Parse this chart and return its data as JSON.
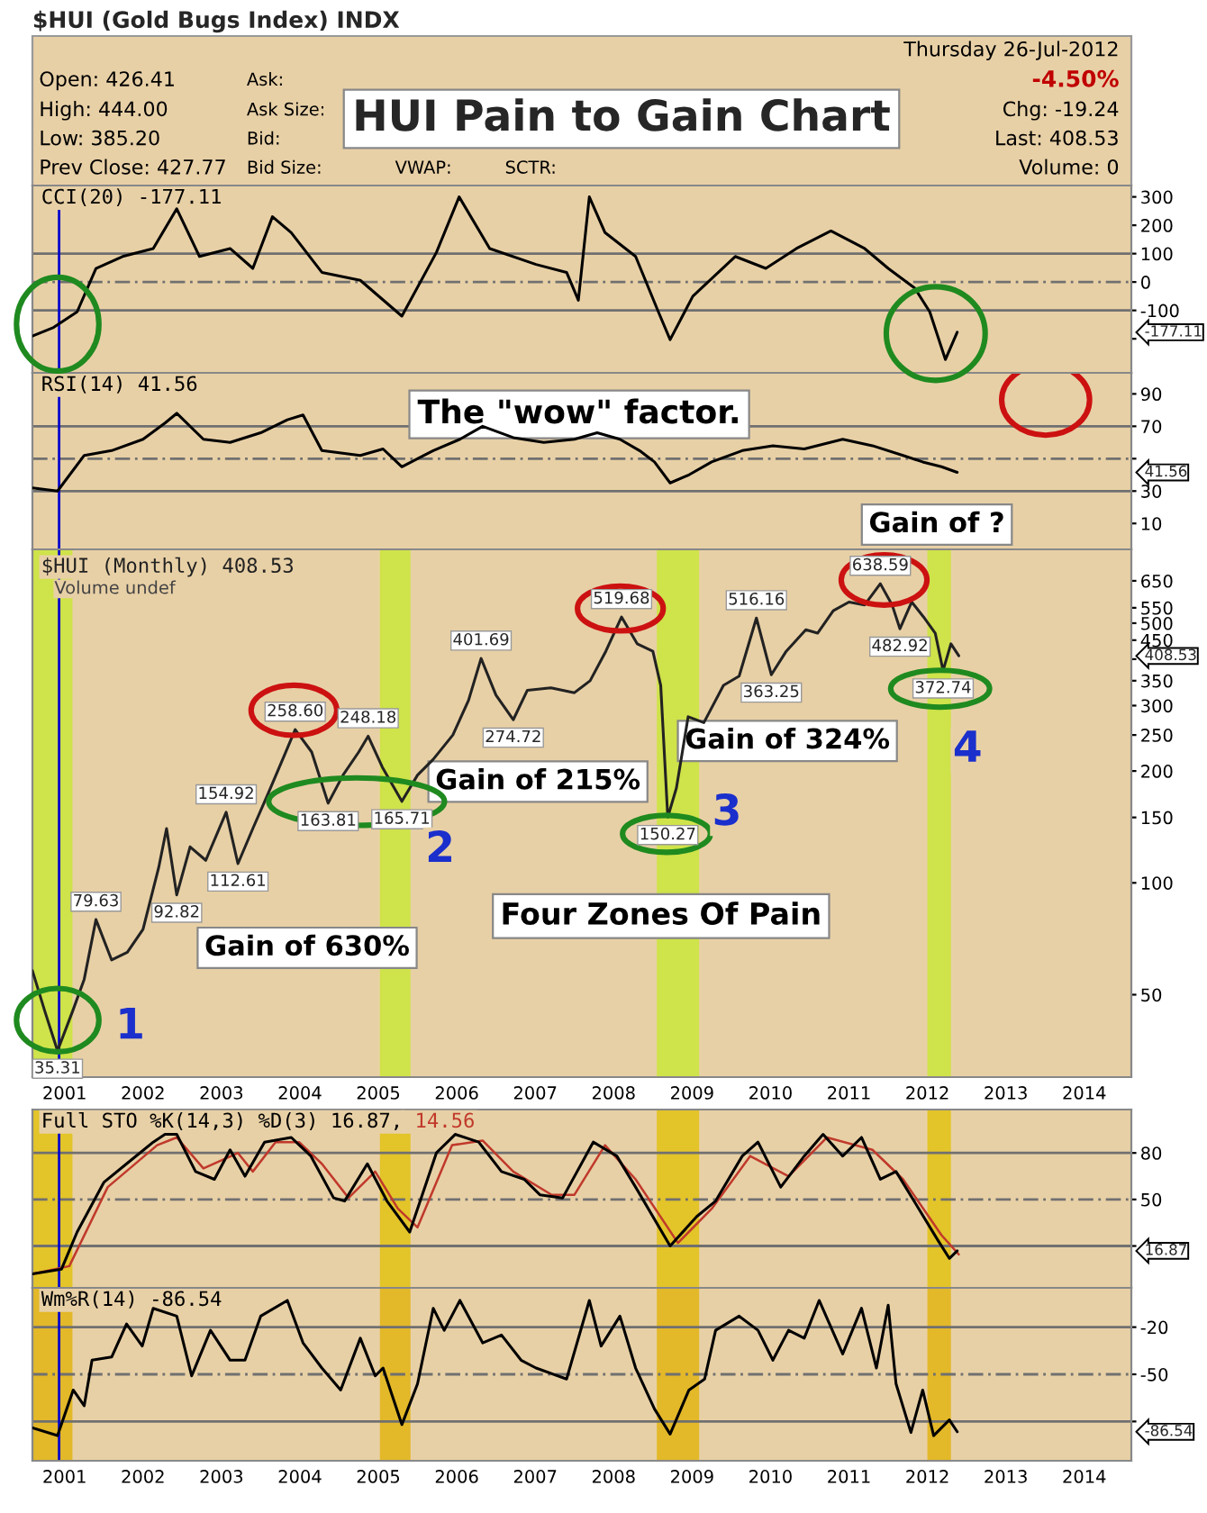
{
  "chart_data": [
    {
      "type": "line",
      "title": "HUI Pain to Gain Chart",
      "subtitle": "$HUI (Gold Bugs Index) INDX",
      "series": [
        {
          "name": "CCI(20) -177.11",
          "color": "#000000",
          "x": [
            2000.59,
            2000.86,
            2001.16,
            2001.4,
            2001.74,
            2002.13,
            2002.43,
            2002.72,
            2003.11,
            2003.4,
            2003.65,
            2003.89,
            2004.28,
            2004.77,
            2005.3,
            2005.74,
            2006.03,
            2006.42,
            2007.01,
            2007.4,
            2007.55,
            2007.69,
            2007.89,
            2008.28,
            2008.57,
            2008.72,
            2009.01,
            2009.55,
            2009.94,
            2010.33,
            2010.77,
            2011.2,
            2011.5,
            2011.84,
            2012.03,
            2012.23,
            2012.38
          ],
          "values": [
            -190,
            -160,
            -105,
            48,
            90,
            118,
            258,
            90,
            118,
            48,
            230,
            174,
            34,
            6,
            -120,
            104,
            300,
            118,
            62,
            34,
            -64,
            300,
            174,
            90,
            -105,
            -203,
            -50,
            90,
            48,
            118,
            180,
            118,
            48,
            -22,
            -105,
            -273,
            -177
          ]
        }
      ],
      "xlim": [
        2000.59,
        2014.6
      ],
      "xticks": [
        2001,
        2002,
        2003,
        2004,
        2005,
        2006,
        2007,
        2008,
        2009,
        2010,
        2011,
        2012,
        2013,
        2014
      ],
      "ylim": [
        -320,
        340
      ],
      "yticks": [
        300,
        200,
        100,
        0,
        -100,
        {
          "value": -200,
          "label": null
        }
      ],
      "tick_labels": "y",
      "ref_lines": [
        {
          "axis": "y",
          "value": 100,
          "color": "#707070",
          "line_style": "solid"
        },
        {
          "axis": "y",
          "value": 0,
          "color": "#707070",
          "line_style": "dashed"
        },
        {
          "axis": "y",
          "value": -100,
          "color": "#707070",
          "line_style": "solid"
        },
        {
          "axis": "x",
          "value": 2000.93,
          "color": "#0000cc",
          "line_style": "solid"
        }
      ],
      "annotations": [
        "Open: 426.41",
        "High: 444.00",
        "Low: 385.20",
        "Prev Close: 427.77",
        "Ask:",
        "Ask Size:",
        "Bid:",
        "Bid Size:",
        "VWAP:",
        "SCTR:",
        "Thursday 26-Jul-2012",
        "-4.50%",
        "Chg: -19.24",
        "Last: 408.53",
        "Volume: 0",
        "-177.11"
      ]
    },
    {
      "type": "line",
      "series": [
        {
          "name": "RSI(14) 41.56",
          "color": "#000000",
          "x": [
            2000.59,
            2000.91,
            2001.25,
            2001.6,
            2002.0,
            2002.28,
            2002.43,
            2002.77,
            2003.11,
            2003.5,
            2003.84,
            2004.04,
            2004.28,
            2004.77,
            2005.06,
            2005.3,
            2005.7,
            2006.04,
            2006.33,
            2006.72,
            2007.11,
            2007.5,
            2007.79,
            2008.08,
            2008.33,
            2008.52,
            2008.72,
            2008.96,
            2009.25,
            2009.64,
            2010.03,
            2010.43,
            2010.92,
            2011.3,
            2011.69,
            2011.94,
            2012.18,
            2012.38
          ],
          "values": [
            32,
            30,
            52,
            55,
            62,
            72,
            78,
            62,
            60,
            66,
            74,
            77,
            55,
            52,
            56,
            45,
            55,
            62,
            70,
            63,
            60,
            62,
            66,
            62,
            55,
            48,
            35,
            40,
            48,
            55,
            58,
            56,
            62,
            58,
            52,
            48,
            45,
            41.56
          ]
        }
      ],
      "xlim": [
        2000.59,
        2014.6
      ],
      "xticks": [
        2001,
        2002,
        2003,
        2004,
        2005,
        2006,
        2007,
        2008,
        2009,
        2010,
        2011,
        2012,
        2013,
        2014
      ],
      "ylim": [
        -6,
        103
      ],
      "yticks": [
        90,
        70,
        {
          "value": 50,
          "label": null
        },
        30,
        10
      ],
      "tick_labels": "y",
      "ref_lines": [
        {
          "axis": "y",
          "value": 70,
          "color": "#707070",
          "line_style": "solid"
        },
        {
          "axis": "y",
          "value": 50,
          "color": "#707070",
          "line_style": "dashed"
        },
        {
          "axis": "y",
          "value": 30,
          "color": "#707070",
          "line_style": "solid"
        },
        {
          "axis": "x",
          "value": 2000.93,
          "color": "#0000cc",
          "line_style": "solid"
        }
      ],
      "annotations": [
        "The \"wow\" factor.",
        "41.56"
      ]
    },
    {
      "type": "line",
      "log": true,
      "series": [
        {
          "name": "$HUI (Monthly) 408.53",
          "color": "#222222",
          "x": [
            2000.59,
            2000.75,
            2000.91,
            2001.1,
            2001.25,
            2001.4,
            2001.6,
            2001.8,
            2002.0,
            2002.2,
            2002.3,
            2002.43,
            2002.6,
            2002.8,
            2003.06,
            2003.21,
            2003.4,
            2003.6,
            2003.8,
            2003.94,
            2004.15,
            2004.36,
            2004.55,
            2004.75,
            2004.87,
            2005.05,
            2005.3,
            2005.5,
            2005.7,
            2005.95,
            2006.15,
            2006.31,
            2006.5,
            2006.72,
            2006.9,
            2007.2,
            2007.5,
            2007.7,
            2007.9,
            2008.1,
            2008.3,
            2008.5,
            2008.6,
            2008.69,
            2008.8,
            2008.95,
            2009.15,
            2009.4,
            2009.6,
            2009.82,
            2010.01,
            2010.2,
            2010.45,
            2010.6,
            2010.8,
            2011.0,
            2011.2,
            2011.4,
            2011.55,
            2011.65,
            2011.8,
            2011.95,
            2012.1,
            2012.2,
            2012.3,
            2012.4
          ],
          "values": [
            58,
            45,
            35.31,
            45,
            55,
            79.63,
            62,
            65,
            75,
            110,
            140,
            92.82,
            125,
            115,
            154.92,
            112.61,
            140,
            175,
            220,
            258.6,
            225,
            163.81,
            195,
            225,
            248.18,
            205,
            165.71,
            195,
            215,
            250,
            310,
            401.69,
            320,
            274.72,
            330,
            335,
            325,
            350,
            420,
            519.68,
            440,
            420,
            340,
            150.27,
            180,
            280,
            270,
            340,
            360,
            516.16,
            363.25,
            420,
            480,
            470,
            540,
            570,
            560,
            638.59,
            560,
            482.92,
            570,
            520,
            470,
            372.74,
            440,
            408.53
          ]
        }
      ],
      "xlim": [
        2000.59,
        2014.6
      ],
      "xticks": [
        2001,
        2002,
        2003,
        2004,
        2005,
        2006,
        2007,
        2008,
        2009,
        2010,
        2011,
        2012,
        2013,
        2014
      ],
      "ylim": [
        30,
        790
      ],
      "yticks": [
        650,
        550,
        500,
        450,
        {
          "value": 400,
          "label": null
        },
        350,
        300,
        250,
        200,
        150,
        100,
        50
      ],
      "bands": [
        {
          "axis": "x",
          "from": 2000.59,
          "to": 2001.1,
          "color": "#cfe34a"
        },
        {
          "axis": "x",
          "from": 2005.02,
          "to": 2005.41,
          "color": "#cfe34a"
        },
        {
          "axis": "x",
          "from": 2008.55,
          "to": 2009.09,
          "color": "#cfe34a"
        },
        {
          "axis": "x",
          "from": 2012.0,
          "to": 2012.3,
          "color": "#cfe34a"
        }
      ],
      "ref_lines": [
        {
          "axis": "x",
          "value": 2000.93,
          "color": "#0000cc",
          "line_style": "solid"
        }
      ],
      "annotations": [
        "Volume undef",
        "Gain of 630%",
        "Gain of 215%",
        "Gain of 324%",
        "Gain of ?",
        "Four Zones Of Pain",
        "1",
        "2",
        "3",
        "4",
        "408.53",
        {
          "text": "35.31",
          "x": 2000.91,
          "y": 35.31
        },
        {
          "text": "79.63",
          "x": 2001.4,
          "y": 79.63
        },
        {
          "text": "92.82",
          "x": 2002.43,
          "y": 92.82
        },
        {
          "text": "154.92",
          "x": 2003.06,
          "y": 154.92
        },
        {
          "text": "112.61",
          "x": 2003.21,
          "y": 112.61
        },
        {
          "text": "258.60",
          "x": 2003.94,
          "y": 258.6
        },
        {
          "text": "163.81",
          "x": 2004.36,
          "y": 163.81
        },
        {
          "text": "248.18",
          "x": 2004.87,
          "y": 248.18
        },
        {
          "text": "165.71",
          "x": 2005.3,
          "y": 165.71
        },
        {
          "text": "401.69",
          "x": 2006.31,
          "y": 401.69
        },
        {
          "text": "274.72",
          "x": 2006.72,
          "y": 274.72
        },
        {
          "text": "519.68",
          "x": 2008.1,
          "y": 519.68
        },
        {
          "text": "150.27",
          "x": 2008.69,
          "y": 150.27
        },
        {
          "text": "516.16",
          "x": 2009.82,
          "y": 516.16
        },
        {
          "text": "363.25",
          "x": 2010.01,
          "y": 363.25
        },
        {
          "text": "638.59",
          "x": 2011.4,
          "y": 638.59
        },
        {
          "text": "482.92",
          "x": 2011.65,
          "y": 482.92
        },
        {
          "text": "372.74",
          "x": 2012.2,
          "y": 372.74
        }
      ]
    },
    {
      "type": "line",
      "series": [
        {
          "name": "Full STO %K(14,3) %D(3) 16.87,",
          "color": "#000000",
          "x": [
            2000.59,
            2000.96,
            2001.16,
            2001.5,
            2001.79,
            2002.13,
            2002.28,
            2002.43,
            2002.67,
            2002.91,
            2003.11,
            2003.3,
            2003.55,
            2003.89,
            2004.14,
            2004.43,
            2004.57,
            2004.86,
            2005.11,
            2005.4,
            2005.74,
            2005.98,
            2006.28,
            2006.57,
            2006.86,
            2007.06,
            2007.35,
            2007.74,
            2008.04,
            2008.28,
            2008.72,
            2009.06,
            2009.3,
            2009.64,
            2009.84,
            2010.13,
            2010.43,
            2010.67,
            2010.92,
            2011.16,
            2011.4,
            2011.6,
            2011.89,
            2012.13,
            2012.28,
            2012.38
          ],
          "values": [
            2,
            5,
            29,
            61,
            73,
            87,
            92,
            92,
            68,
            63,
            82,
            65,
            87,
            90,
            78,
            51,
            49,
            73,
            49,
            29,
            80,
            92,
            87,
            68,
            63,
            53,
            51,
            87,
            78,
            58,
            20,
            39,
            49,
            78,
            87,
            58,
            78,
            92,
            78,
            90,
            63,
            68,
            44,
            24,
            12,
            16.87
          ]
        },
        {
          "name": "14.56",
          "color": "#c0392b",
          "x": [
            2000.59,
            2001.06,
            2001.55,
            2002.18,
            2002.43,
            2002.77,
            2003.21,
            2003.4,
            2003.69,
            2003.99,
            2004.28,
            2004.62,
            2004.96,
            2005.25,
            2005.5,
            2005.94,
            2006.33,
            2006.72,
            2007.21,
            2007.5,
            2007.89,
            2008.28,
            2008.82,
            2009.25,
            2009.74,
            2010.23,
            2010.72,
            2011.3,
            2011.69,
            2012.18,
            2012.4
          ],
          "values": [
            2,
            7,
            58,
            85,
            90,
            70,
            80,
            68,
            87,
            87,
            73,
            51,
            68,
            44,
            32,
            85,
            88,
            68,
            53,
            53,
            85,
            63,
            22,
            44,
            78,
            65,
            90,
            82,
            63,
            27,
            14.56
          ]
        }
      ],
      "xlim": [
        2000.59,
        2014.6
      ],
      "xticks": [
        2001,
        2002,
        2003,
        2004,
        2005,
        2006,
        2007,
        2008,
        2009,
        2010,
        2011,
        2012,
        2013,
        2014
      ],
      "ylim": [
        -7,
        108
      ],
      "yticks": [
        80,
        50,
        {
          "value": 20,
          "label": null
        }
      ],
      "tick_labels": "y",
      "bands": [
        {
          "axis": "x",
          "from": 2000.59,
          "to": 2001.1,
          "color": "#e3c429"
        },
        {
          "axis": "x",
          "from": 2005.02,
          "to": 2005.41,
          "color": "#e3c429"
        },
        {
          "axis": "x",
          "from": 2008.55,
          "to": 2009.09,
          "color": "#e3c429"
        },
        {
          "axis": "x",
          "from": 2012.0,
          "to": 2012.3,
          "color": "#e3c429"
        }
      ],
      "ref_lines": [
        {
          "axis": "y",
          "value": 80,
          "color": "#707070",
          "line_style": "solid"
        },
        {
          "axis": "y",
          "value": 50,
          "color": "#707070",
          "line_style": "dashed"
        },
        {
          "axis": "y",
          "value": 20,
          "color": "#707070",
          "line_style": "solid"
        },
        {
          "axis": "x",
          "value": 2000.93,
          "color": "#0000cc",
          "line_style": "solid"
        }
      ],
      "annotations": [
        "16.87"
      ]
    },
    {
      "type": "line",
      "series": [
        {
          "name": "Wm%R(14) -86.54",
          "color": "#000000",
          "x": [
            2000.59,
            2000.91,
            2001.11,
            2001.25,
            2001.35,
            2001.6,
            2001.79,
            2001.99,
            2002.13,
            2002.43,
            2002.62,
            2002.86,
            2003.11,
            2003.3,
            2003.5,
            2003.84,
            2004.04,
            2004.28,
            2004.52,
            2004.77,
            2004.96,
            2005.06,
            2005.3,
            2005.5,
            2005.7,
            2005.84,
            2006.04,
            2006.33,
            2006.57,
            2006.82,
            2007.01,
            2007.4,
            2007.69,
            2007.84,
            2008.08,
            2008.28,
            2008.52,
            2008.72,
            2008.96,
            2009.16,
            2009.3,
            2009.6,
            2009.84,
            2010.03,
            2010.23,
            2010.43,
            2010.62,
            2010.92,
            2011.16,
            2011.35,
            2011.5,
            2011.6,
            2011.79,
            2011.94,
            2012.08,
            2012.28,
            2012.38
          ],
          "values": [
            -84,
            -89,
            -60,
            -70,
            -41,
            -39,
            -18,
            -32,
            -8,
            -13,
            -51,
            -22,
            -41,
            -41,
            -13,
            -3,
            -30,
            -46,
            -60,
            -27,
            -51,
            -46,
            -82,
            -56,
            -8,
            -22,
            -3,
            -30,
            -25,
            -41,
            -46,
            -53,
            -3,
            -32,
            -13,
            -46,
            -72,
            -88,
            -60,
            -53,
            -22,
            -13,
            -22,
            -41,
            -22,
            -27,
            -3,
            -37,
            -8,
            -46,
            -6,
            -56,
            -87,
            -60,
            -89,
            -79,
            -86.54
          ]
        }
      ],
      "xlim": [
        2000.59,
        2014.6
      ],
      "xticks": [
        2001,
        2002,
        2003,
        2004,
        2005,
        2006,
        2007,
        2008,
        2009,
        2010,
        2011,
        2012,
        2013,
        2014
      ],
      "ylim": [
        -105,
        5
      ],
      "yticks": [
        -20,
        -50,
        {
          "value": -80,
          "label": null
        }
      ],
      "bands": [
        {
          "axis": "x",
          "from": 2000.59,
          "to": 2001.1,
          "color": "#e3b829"
        },
        {
          "axis": "x",
          "from": 2005.02,
          "to": 2005.41,
          "color": "#e3b829"
        },
        {
          "axis": "x",
          "from": 2008.55,
          "to": 2009.09,
          "color": "#e3b829"
        },
        {
          "axis": "x",
          "from": 2012.0,
          "to": 2012.3,
          "color": "#e3b829"
        }
      ],
      "ref_lines": [
        {
          "axis": "y",
          "value": -20,
          "color": "#707070",
          "line_style": "solid"
        },
        {
          "axis": "y",
          "value": -50,
          "color": "#707070",
          "line_style": "dashed"
        },
        {
          "axis": "y",
          "value": -80,
          "color": "#707070",
          "line_style": "solid"
        },
        {
          "axis": "x",
          "value": 2000.93,
          "color": "#0000cc",
          "line_style": "solid"
        }
      ],
      "annotations": [
        "-86.54"
      ]
    }
  ]
}
